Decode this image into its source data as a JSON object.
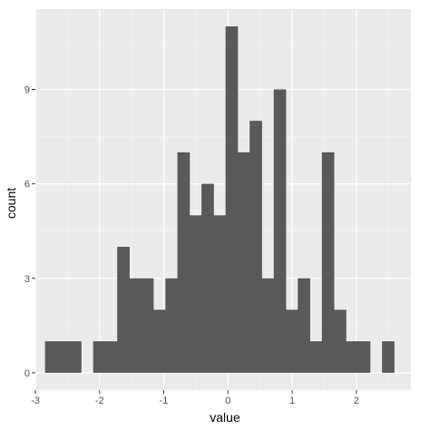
{
  "chart_data": {
    "type": "bar",
    "subtype": "histogram",
    "xlabel": "value",
    "ylabel": "count",
    "xlim": [
      -3.0,
      2.85
    ],
    "ylim": [
      -0.55,
      11.55
    ],
    "x_ticks": [
      -3,
      -2,
      -1,
      0,
      1,
      2
    ],
    "x_tick_labels": [
      "-3",
      "-2",
      "-1",
      "0",
      "1",
      "2"
    ],
    "y_ticks": [
      0,
      3,
      6,
      9
    ],
    "y_tick_labels": [
      "0",
      "3",
      "6",
      "9"
    ],
    "bin_start": -2.85,
    "bin_width": 0.1875,
    "counts": [
      1,
      1,
      1,
      0,
      1,
      1,
      4,
      3,
      3,
      2,
      3,
      7,
      5,
      6,
      5,
      11,
      7,
      8,
      3,
      9,
      2,
      3,
      1,
      7,
      2,
      1,
      1,
      0,
      1
    ],
    "grid": true,
    "legend": "none",
    "colors": {
      "panel_background": "#ebebeb",
      "grid_major": "#ffffff",
      "grid_minor": "#f5f5f5",
      "bar_fill": "#595959",
      "tick": "#333333"
    }
  }
}
